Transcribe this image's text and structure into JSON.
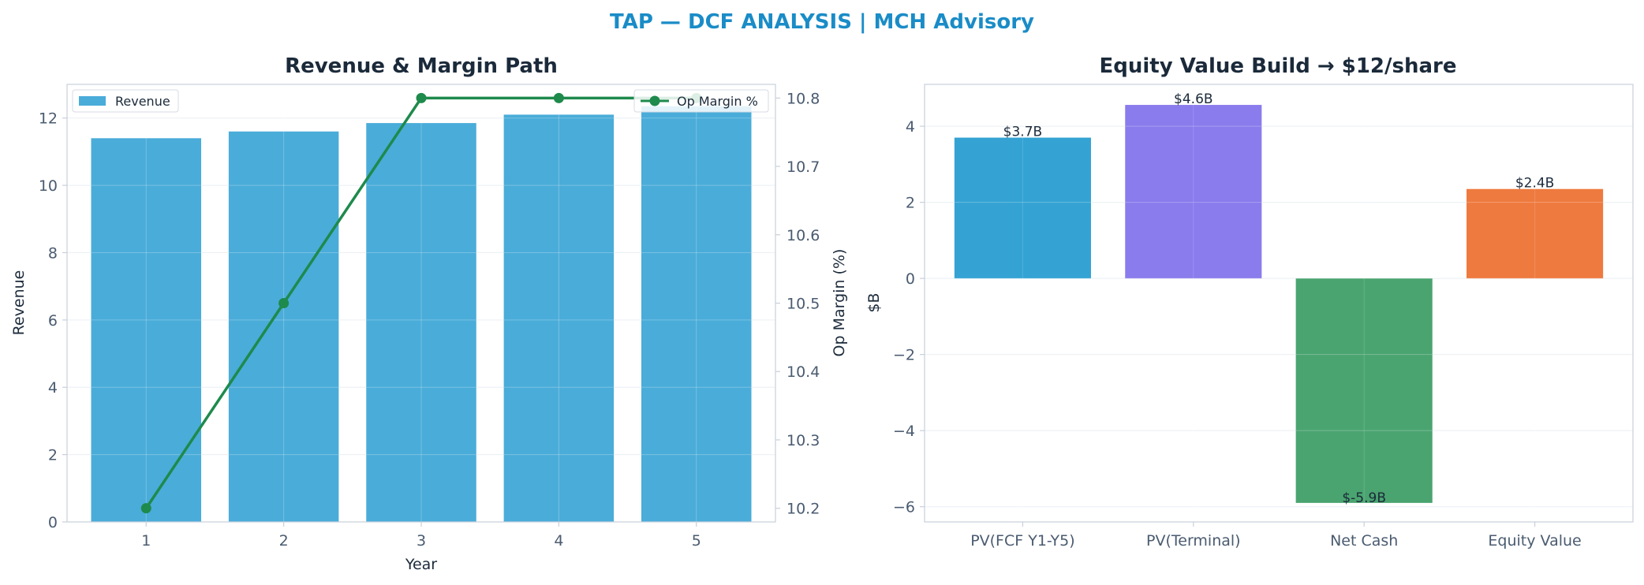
{
  "figure": {
    "suptitle": "TAP — DCF ANALYSIS | MCH Advisory",
    "suptitle_color": "#1a8cc7"
  },
  "colors": {
    "revenue_bar": "#4aacd9",
    "margin_line": "#1e8a4c",
    "grid": "#e6ebf1",
    "spine": "#c8d0da",
    "equity_bars": [
      "#34a3d4",
      "#8a7cec",
      "#4aa470",
      "#ee7a3f"
    ]
  },
  "chart_data": [
    {
      "type": "bar",
      "title": "Revenue & Margin Path",
      "xlabel": "Year",
      "ylabel": "Revenue",
      "categories": [
        "1",
        "2",
        "3",
        "4",
        "5"
      ],
      "series": [
        {
          "name": "Revenue",
          "axis": "left",
          "type": "bar",
          "values": [
            11.4,
            11.6,
            11.85,
            12.1,
            12.35
          ]
        },
        {
          "name": "Op Margin %",
          "axis": "right",
          "type": "line",
          "values": [
            10.2,
            10.5,
            10.8,
            10.8,
            10.8
          ]
        }
      ],
      "ylim": [
        0,
        13
      ],
      "yticks": [
        "0",
        "2",
        "4",
        "6",
        "8",
        "10",
        "12"
      ],
      "y2label": "Op Margin (%)",
      "y2lim": [
        10.18,
        10.82
      ],
      "y2ticks": [
        "10.2",
        "10.3",
        "10.4",
        "10.5",
        "10.6",
        "10.7",
        "10.8"
      ],
      "grid": true,
      "legend": [
        {
          "label": "Revenue",
          "placement": "top-left"
        },
        {
          "label": "Op Margin %",
          "placement": "top-right"
        }
      ]
    },
    {
      "type": "bar",
      "title": "Equity Value Build → $12/share",
      "xlabel": "",
      "ylabel": "$B",
      "categories": [
        "PV(FCF Y1-Y5)",
        "PV(Terminal)",
        "Net Cash",
        "Equity Value"
      ],
      "values": [
        3.7,
        4.56,
        -5.9,
        2.35
      ],
      "data_labels": [
        "$3.7B",
        "$4.6B",
        "$-5.9B",
        "$2.4B"
      ],
      "ylim": [
        -6.4,
        5.1
      ],
      "yticks": [
        "−6",
        "−4",
        "−2",
        "0",
        "2",
        "4"
      ],
      "grid": true
    }
  ]
}
